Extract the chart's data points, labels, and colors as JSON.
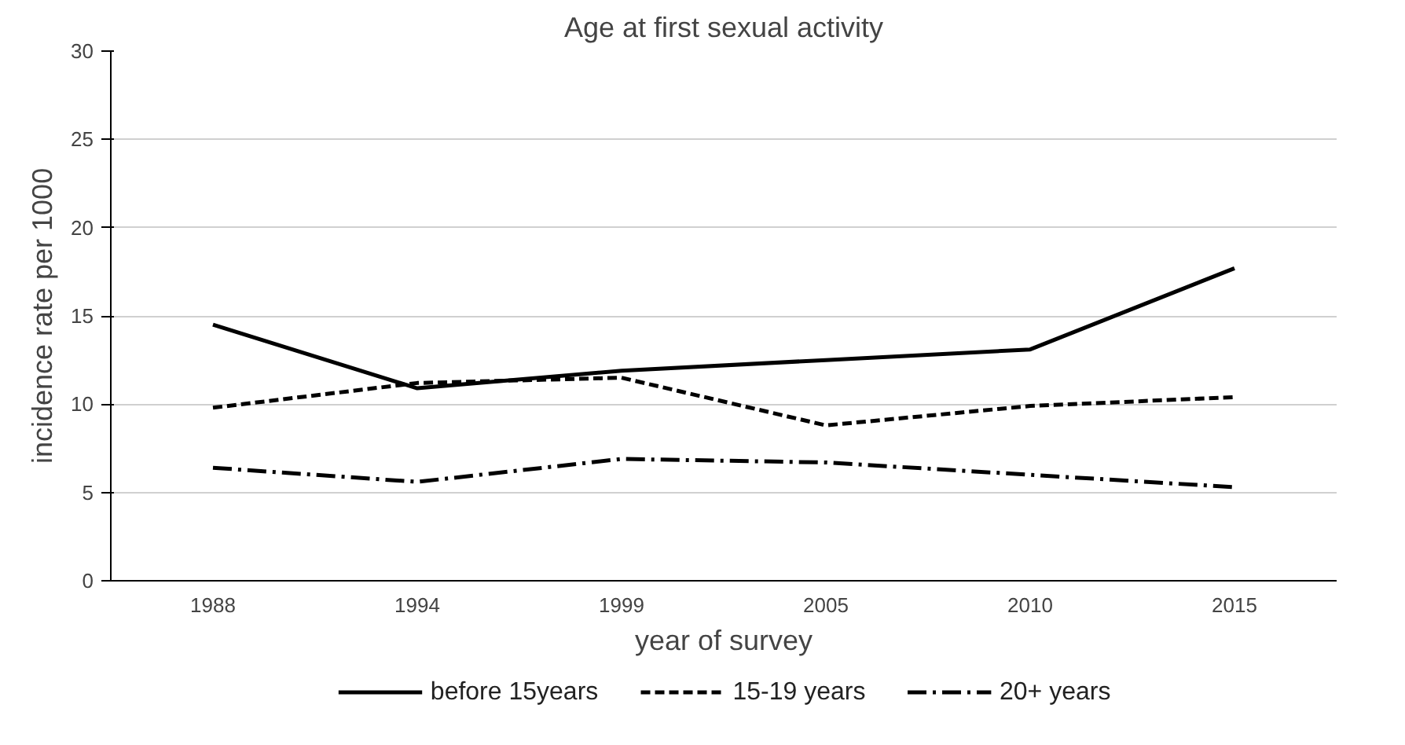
{
  "chart_data": {
    "type": "line",
    "title": "Age at first sexual activity",
    "xlabel": "year of survey",
    "ylabel": "incidence rate per 1000",
    "categories": [
      "1988",
      "1994",
      "1999",
      "2005",
      "2010",
      "2015"
    ],
    "series": [
      {
        "name": "before 15years",
        "color": "#000000",
        "line_style": "solid",
        "values": [
          14.5,
          10.9,
          11.9,
          12.5,
          13.1,
          17.7
        ]
      },
      {
        "name": "15-19 years",
        "color": "#000000",
        "line_style": "dashed",
        "values": [
          9.8,
          11.2,
          11.5,
          8.8,
          9.9,
          10.4
        ]
      },
      {
        "name": "20+ years",
        "color": "#000000",
        "line_style": "dashdot",
        "values": [
          6.4,
          5.6,
          6.9,
          6.7,
          6.0,
          5.3
        ]
      }
    ],
    "ylim": [
      0,
      30
    ],
    "yticks": [
      0,
      5,
      10,
      15,
      20,
      25,
      30
    ],
    "grid": "y",
    "legend": "bottom",
    "marker": "none"
  }
}
